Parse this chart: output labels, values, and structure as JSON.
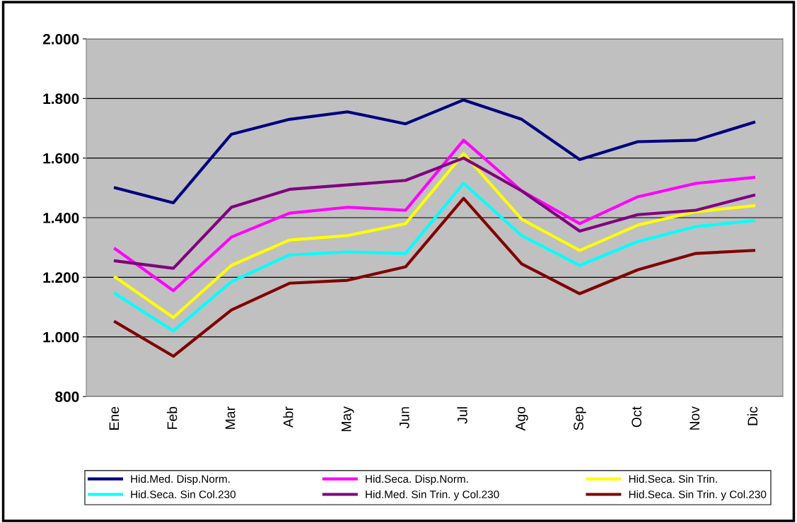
{
  "chart_data": {
    "type": "line",
    "categories": [
      "Ene",
      "Feb",
      "Mar",
      "Abr",
      "May",
      "Jun",
      "Jul",
      "Ago",
      "Sep",
      "Oct",
      "Nov",
      "Dic"
    ],
    "series": [
      {
        "name": "Hid.Med. Disp.Norm.",
        "color": "#000080",
        "values": [
          1500,
          1450,
          1680,
          1730,
          1755,
          1715,
          1795,
          1730,
          1595,
          1655,
          1660,
          1720
        ]
      },
      {
        "name": "Hid.Seca. Disp.Norm.",
        "color": "#ff00ff",
        "values": [
          1295,
          1155,
          1335,
          1415,
          1435,
          1425,
          1660,
          1490,
          1380,
          1470,
          1515,
          1535
        ]
      },
      {
        "name": "Hid.Seca. Sin Trin.",
        "color": "#ffff00",
        "values": [
          1200,
          1065,
          1240,
          1325,
          1340,
          1380,
          1615,
          1395,
          1290,
          1375,
          1420,
          1440
        ]
      },
      {
        "name": "Hid.Seca. Sin Col.230",
        "color": "#00ffff",
        "values": [
          1145,
          1020,
          1185,
          1275,
          1285,
          1280,
          1515,
          1340,
          1240,
          1320,
          1370,
          1390
        ]
      },
      {
        "name": "Hid.Med. Sin Trin. y Col.230",
        "color": "#800080",
        "values": [
          1255,
          1230,
          1435,
          1495,
          1510,
          1525,
          1600,
          1490,
          1355,
          1410,
          1425,
          1475
        ]
      },
      {
        "name": "Hid.Seca. Sin Trin. y Col.230",
        "color": "#800000",
        "values": [
          1050,
          935,
          1090,
          1180,
          1190,
          1235,
          1465,
          1245,
          1145,
          1225,
          1280,
          1290
        ]
      }
    ],
    "ylim": [
      800,
      2000
    ],
    "yticks": [
      800,
      {
        "value": 1000,
        "label": "1.000"
      },
      {
        "value": 1200,
        "label": "1.200"
      },
      {
        "value": 1400,
        "label": "1.400"
      },
      {
        "value": 1600,
        "label": "1.600"
      },
      {
        "value": 1800,
        "label": "1.800"
      },
      {
        "value": 2000,
        "label": "2.000"
      }
    ],
    "grid": "y",
    "legend": "bottom",
    "marker": "none",
    "line_style": "solid"
  }
}
